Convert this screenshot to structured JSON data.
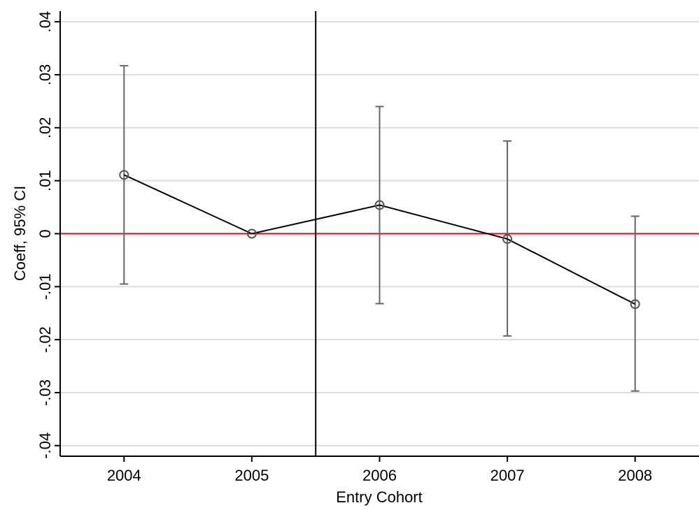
{
  "chart_data": {
    "type": "scatter",
    "title": "",
    "xlabel": "Entry Cohort",
    "ylabel": "Coeff, 95% CI",
    "categories": [
      "2004",
      "2005",
      "2006",
      "2007",
      "2008"
    ],
    "x": [
      2004,
      2005,
      2006,
      2007,
      2008
    ],
    "xlim": [
      2003.5,
      2008.5
    ],
    "ylim": [
      -0.042,
      0.042
    ],
    "y_ticks": [
      -0.04,
      -0.03,
      -0.02,
      -0.01,
      0,
      0.01,
      0.02,
      0.03,
      0.04
    ],
    "y_tick_labels": [
      "-.04",
      "-.03",
      "-.02",
      "-.01",
      "0",
      ".01",
      ".02",
      ".03",
      ".04"
    ],
    "series": [
      {
        "values": [
          0.0111,
          0.0,
          0.0054,
          -0.001,
          -0.0133
        ],
        "ci_lower": [
          -0.0095,
          0.0,
          -0.0132,
          -0.0193,
          -0.0297
        ],
        "ci_upper": [
          0.0317,
          0.0,
          0.024,
          0.0175,
          0.0033
        ]
      }
    ],
    "reference_lines": {
      "horizontal_y": 0,
      "horizontal_color": "#e8000b",
      "vertical_x": 2005.5,
      "vertical_color": "#000000"
    },
    "grid": true,
    "grid_color": "#dddddd",
    "line_color": "#000000",
    "marker_color": "#555555",
    "errorbar_color": "#666666",
    "legend": "none"
  }
}
